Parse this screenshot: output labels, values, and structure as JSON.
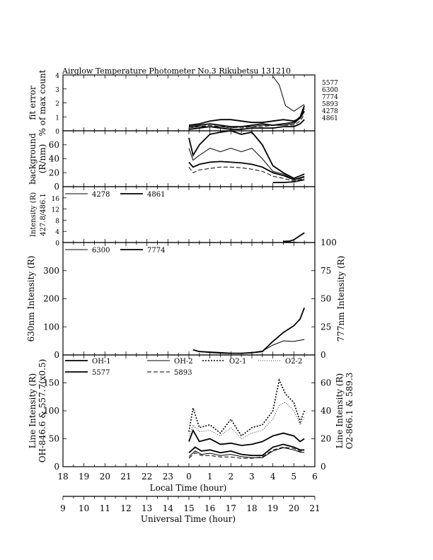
{
  "title": "Airglow Temperature Photometer No.3   Rikubetsu    131210",
  "x_axes": {
    "local": {
      "label": "Local Time (hour)",
      "ticks": [
        "18",
        "19",
        "20",
        "21",
        "22",
        "23",
        "0",
        "1",
        "2",
        "3",
        "4",
        "5",
        "6"
      ]
    },
    "universal": {
      "label": "Universal Time (hour)",
      "ticks": [
        "9",
        "10",
        "11",
        "12",
        "13",
        "14",
        "15",
        "16",
        "17",
        "18",
        "19",
        "20",
        "21"
      ]
    }
  },
  "chart_data": [
    {
      "type": "line",
      "panel": "fit-error",
      "ylabel": "fit error",
      "ylabel2": "% of max count",
      "ylim": [
        0,
        4
      ],
      "yticks": [
        "0",
        "1",
        "2",
        "3",
        "4"
      ],
      "x_units": "hours after 18 LT",
      "legend_right": [
        "5577",
        "6300",
        "7774",
        "5893",
        "4278",
        "4861"
      ],
      "series": [
        {
          "name": "5577",
          "x": [
            6.0,
            6.5,
            7.0,
            7.5,
            8.0,
            8.5,
            9.0,
            9.5,
            10.0,
            10.5,
            11.0,
            11.3,
            11.5
          ],
          "y": [
            0.3,
            0.4,
            0.5,
            0.4,
            0.3,
            0.3,
            0.4,
            0.5,
            0.4,
            0.5,
            0.6,
            1.0,
            1.8
          ]
        },
        {
          "name": "6300",
          "x": [
            6.0,
            6.5,
            7.0,
            7.5,
            8.0,
            8.5,
            9.0,
            9.5,
            10.0,
            10.5,
            11.0,
            11.3,
            11.5
          ],
          "y": [
            0.2,
            0.3,
            0.3,
            0.3,
            0.2,
            0.3,
            0.3,
            0.4,
            0.4,
            0.4,
            0.5,
            0.9,
            1.6
          ]
        },
        {
          "name": "7774",
          "x": [
            6.0,
            6.5,
            7.0,
            7.5,
            8.0,
            8.5,
            9.0,
            9.5,
            10.0,
            10.5,
            11.0,
            11.3,
            11.5
          ],
          "y": [
            0.4,
            0.5,
            0.7,
            0.8,
            0.8,
            0.7,
            0.6,
            0.6,
            0.7,
            0.8,
            0.7,
            0.9,
            1.4
          ]
        },
        {
          "name": "5893",
          "x": [
            6.0,
            6.5,
            7.0,
            7.5,
            8.0,
            8.5,
            9.0,
            9.5,
            10.0,
            10.5,
            11.0,
            11.3,
            11.5
          ],
          "y": [
            0.3,
            0.3,
            0.4,
            0.3,
            0.3,
            0.2,
            0.3,
            0.3,
            0.4,
            0.4,
            0.4,
            0.7,
            1.2
          ]
        },
        {
          "name": "4278",
          "x": [
            10.0,
            10.3,
            10.6,
            11.0,
            11.2,
            11.5
          ],
          "y": [
            3.9,
            3.3,
            1.8,
            1.4,
            1.6,
            1.9
          ]
        },
        {
          "name": "4861",
          "x": [
            6.0,
            6.5,
            7.0,
            7.5,
            8.0,
            8.5,
            9.0,
            9.5,
            10.0,
            10.5,
            11.0,
            11.3,
            11.5
          ],
          "y": [
            0.1,
            0.2,
            0.3,
            0.2,
            0.1,
            0.1,
            0.2,
            0.2,
            0.2,
            0.3,
            0.3,
            0.5,
            0.8
          ]
        }
      ]
    },
    {
      "type": "line",
      "panel": "background",
      "ylabel": "background",
      "ylabel2": "(R/nm)",
      "ylim": [
        0,
        80
      ],
      "yticks": [
        "0",
        "20",
        "40",
        "60"
      ],
      "x_units": "hours after 18 LT",
      "series": [
        {
          "name": "5577",
          "x": [
            6.0,
            6.2,
            6.5,
            7.0,
            7.5,
            8.0,
            8.5,
            9.0,
            9.5,
            10.0,
            10.5,
            11.0,
            11.5
          ],
          "y": [
            70,
            45,
            60,
            75,
            78,
            80,
            75,
            78,
            60,
            30,
            20,
            12,
            18
          ]
        },
        {
          "name": "6300",
          "x": [
            6.0,
            6.2,
            6.5,
            7.0,
            7.5,
            8.0,
            8.5,
            9.0,
            9.5,
            10.0,
            10.5,
            11.0,
            11.5
          ],
          "y": [
            55,
            38,
            45,
            55,
            50,
            55,
            50,
            55,
            40,
            22,
            18,
            10,
            15
          ]
        },
        {
          "name": "7774",
          "x": [
            6.0,
            6.2,
            6.5,
            7.0,
            7.5,
            8.0,
            8.5,
            9.0,
            9.5,
            10.0,
            10.5,
            11.0,
            11.5
          ],
          "y": [
            35,
            28,
            32,
            35,
            36,
            35,
            34,
            32,
            28,
            20,
            16,
            10,
            14
          ]
        },
        {
          "name": "5893",
          "x": [
            6.0,
            6.2,
            6.5,
            7.0,
            7.5,
            8.0,
            8.5,
            9.0,
            9.5,
            10.0,
            10.5,
            11.0,
            11.5
          ],
          "y": [
            28,
            20,
            24,
            26,
            28,
            28,
            27,
            25,
            22,
            15,
            12,
            8,
            12
          ]
        },
        {
          "name": "4861",
          "x": [
            10.0,
            10.5,
            11.0,
            11.5
          ],
          "y": [
            6,
            6,
            7,
            10
          ]
        }
      ]
    },
    {
      "type": "line",
      "panel": "blue-lines",
      "ylabel": "Intensity (R)",
      "ylabel2": "427.8/486.1",
      "ylim": [
        0,
        20
      ],
      "yticks": [
        "0",
        "4",
        "8",
        "12",
        "16"
      ],
      "x_units": "hours after 18 LT",
      "series": [
        {
          "name": "4278",
          "x": [
            10.5,
            10.8,
            11.0,
            11.3
          ],
          "y": [
            0.3,
            0.2,
            0.1,
            0.0
          ]
        },
        {
          "name": "4861",
          "x": [
            10.5,
            10.8,
            11.0,
            11.3,
            11.5
          ],
          "y": [
            0.4,
            0.5,
            1.0,
            2.5,
            3.5
          ]
        }
      ]
    },
    {
      "type": "line",
      "panel": "red-lines",
      "ylabel": "630nm Intensity (R)",
      "ylabel_right": "777nm Intensity (R)",
      "ylim": [
        0,
        400
      ],
      "yticks": [
        "0",
        "100",
        "200",
        "300"
      ],
      "ylim_right": [
        0,
        100
      ],
      "yticks_right": [
        "0",
        "25",
        "50",
        "75",
        "100"
      ],
      "x_units": "hours after 18 LT",
      "series": [
        {
          "name": "6300",
          "x": [
            6.2,
            6.5,
            7.0,
            7.5,
            8.0,
            8.5,
            9.0,
            9.5,
            10.0,
            10.5,
            11.0,
            11.5
          ],
          "y": [
            18,
            12,
            8,
            6,
            5,
            5,
            8,
            14,
            35,
            50,
            48,
            55
          ]
        },
        {
          "name": "7774",
          "x": [
            6.2,
            6.5,
            7.0,
            7.5,
            8.0,
            8.5,
            9.0,
            9.5,
            10.0,
            10.5,
            11.0,
            11.3,
            11.5
          ],
          "y": [
            4.5,
            3,
            2.5,
            2,
            1.5,
            1.5,
            2,
            3,
            12,
            20,
            26,
            32,
            42
          ]
        }
      ]
    },
    {
      "type": "line",
      "panel": "line-intensity",
      "ylabel": "Line Intensity (R)",
      "ylabel2": "OH-846.6 & 557.7(x0.5)",
      "ylabel_right": "Line Intensity (R)",
      "ylabel_right2": "O2-866.1 & 589.3",
      "ylim": [
        0,
        200
      ],
      "yticks": [
        "0",
        "50",
        "100",
        "150"
      ],
      "ylim_right": [
        0,
        80
      ],
      "yticks_right": [
        "0",
        "20",
        "40",
        "60"
      ],
      "legend": [
        "OH-1",
        "OH-2",
        "O2-1",
        "O2-2",
        "5577",
        "5893"
      ],
      "series": [
        {
          "name": "OH-1",
          "x": [
            6.0,
            6.3,
            6.6,
            7.0,
            7.5,
            8.0,
            8.5,
            9.0,
            9.5,
            10.0,
            10.5,
            11.0,
            11.3,
            11.5
          ],
          "y": [
            25,
            35,
            28,
            30,
            25,
            28,
            22,
            20,
            20,
            35,
            40,
            35,
            30,
            30
          ]
        },
        {
          "name": "OH-2",
          "x": [
            6.0,
            6.3,
            6.6,
            7.0,
            7.5,
            8.0,
            8.5,
            9.0,
            9.5,
            10.0,
            10.5,
            11.0,
            11.3,
            11.5
          ],
          "y": [
            18,
            28,
            22,
            24,
            20,
            22,
            18,
            16,
            16,
            28,
            34,
            30,
            26,
            26
          ]
        },
        {
          "name": "O2-1",
          "x": [
            6.0,
            6.2,
            6.5,
            7.0,
            7.5,
            8.0,
            8.5,
            9.0,
            9.5,
            10.0,
            10.3,
            10.6,
            11.0,
            11.3,
            11.5
          ],
          "y": [
            25,
            42,
            28,
            30,
            24,
            34,
            22,
            28,
            30,
            40,
            62,
            52,
            46,
            32,
            40
          ]
        },
        {
          "name": "O2-2",
          "x": [
            6.0,
            6.2,
            6.5,
            7.0,
            7.5,
            8.0,
            8.5,
            9.0,
            9.5,
            10.0,
            10.3,
            10.6,
            11.0,
            11.3,
            11.5
          ],
          "y": [
            22,
            30,
            25,
            26,
            22,
            28,
            20,
            24,
            26,
            34,
            44,
            46,
            40,
            30,
            36
          ]
        },
        {
          "name": "5577",
          "x": [
            6.0,
            6.2,
            6.5,
            7.0,
            7.5,
            8.0,
            8.5,
            9.0,
            9.5,
            10.0,
            10.5,
            11.0,
            11.3,
            11.5
          ],
          "y": [
            45,
            65,
            45,
            50,
            40,
            42,
            38,
            40,
            45,
            55,
            60,
            55,
            45,
            50
          ]
        },
        {
          "name": "5893",
          "x": [
            6.0,
            6.3,
            6.6,
            7.0,
            7.5,
            8.0,
            8.5,
            9.0,
            9.5,
            10.0,
            10.5,
            11.0,
            11.3,
            11.5
          ],
          "y": [
            6,
            10,
            8,
            8,
            7,
            7,
            6,
            6,
            7,
            12,
            14,
            13,
            11,
            12
          ]
        }
      ]
    }
  ]
}
